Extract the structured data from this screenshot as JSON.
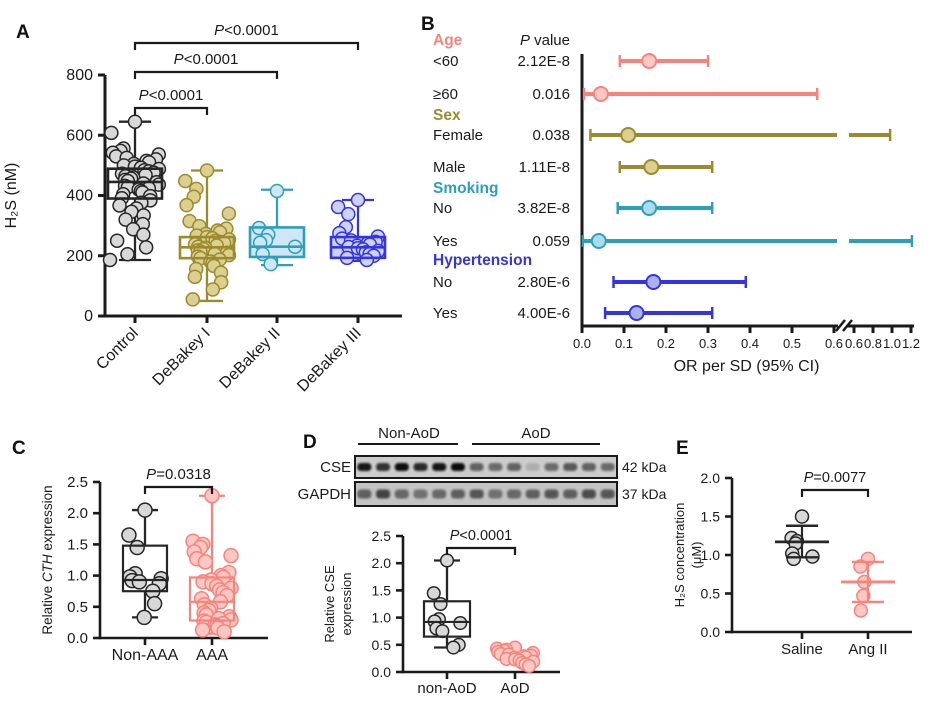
{
  "figure": {
    "panel_labels": {
      "A": "A",
      "B": "B",
      "C": "C",
      "D": "D",
      "E": "E"
    },
    "colors": {
      "black": "#262626",
      "salmon": "#f8837b",
      "olive": "#9c8a2e",
      "teal": "#2d9fba",
      "blue": "#3434e3"
    }
  },
  "chart_data": [
    {
      "id": "A",
      "type": "box-scatter",
      "ylabel": "H₂S (nM)",
      "ylim": [
        0,
        800
      ],
      "yticks": [
        0,
        200,
        400,
        600,
        800
      ],
      "tick_decimals": 0,
      "categories": [
        "Control",
        "DeBakey I",
        "DeBakey II",
        "DeBakey III"
      ],
      "groups": [
        {
          "name": "Control",
          "color": "#262626",
          "point_fill": "#d8d8d8",
          "box": {
            "lo": 186,
            "q1": 390,
            "median": 445,
            "q3": 489,
            "hi": 645
          },
          "points": [
            645,
            608,
            556,
            548,
            542,
            536,
            530,
            525,
            520,
            515,
            510,
            505,
            500,
            496,
            492,
            488,
            484,
            480,
            476,
            472,
            468,
            464,
            460,
            456,
            452,
            448,
            444,
            440,
            436,
            432,
            428,
            424,
            420,
            415,
            410,
            404,
            398,
            391,
            384,
            376,
            367,
            357,
            346,
            334,
            320,
            305,
            288,
            270,
            250,
            228,
            205,
            186
          ]
        },
        {
          "name": "DeBakey I",
          "color": "#9c8a2e",
          "point_fill": "#dccf8f",
          "box": {
            "lo": 50,
            "q1": 192,
            "median": 228,
            "q3": 262,
            "hi": 483
          },
          "points": [
            483,
            448,
            422,
            396,
            368,
            340,
            315,
            298,
            290,
            284,
            278,
            272,
            267,
            262,
            258,
            254,
            250,
            246,
            242,
            238,
            234,
            230,
            226,
            222,
            218,
            214,
            210,
            206,
            202,
            197,
            192,
            187,
            181,
            174,
            166,
            156,
            144,
            130,
            112,
            88,
            55
          ]
        },
        {
          "name": "DeBakey II",
          "color": "#2d9fba",
          "point_fill": "#cfe6f4",
          "box_fill": "#cfe6f4",
          "box": {
            "lo": 169,
            "q1": 196,
            "median": 230,
            "q3": 294,
            "hi": 419
          },
          "points": [
            415,
            292,
            270,
            252,
            243,
            230,
            206,
            172
          ]
        },
        {
          "name": "DeBakey III",
          "color": "#3434e3",
          "point_fill": "#ccd2f8",
          "box_fill": "#ccd2f8",
          "box": {
            "lo": 183,
            "q1": 193,
            "median": 228,
            "q3": 262,
            "hi": 385
          },
          "points": [
            385,
            362,
            338,
            295,
            275,
            264,
            257,
            251,
            246,
            241,
            237,
            233,
            229,
            225,
            221,
            216,
            211,
            206,
            200,
            193,
            186
          ]
        }
      ],
      "significance": [
        {
          "from": 0,
          "to": 1,
          "label": "P<0.0001"
        },
        {
          "from": 0,
          "to": 2,
          "label": "P<0.0001"
        },
        {
          "from": 0,
          "to": 3,
          "label": "P<0.0001"
        }
      ]
    },
    {
      "id": "B",
      "type": "forest",
      "xlabel": "OR per SD (95% CI)",
      "p_header": "P value",
      "axis": {
        "linear_max": 0.6,
        "break_max": 1.2,
        "ticks_main": [
          0.0,
          0.1,
          0.2,
          0.3,
          0.4,
          0.5,
          0.6
        ],
        "ticks_after_break": [
          0.6,
          0.8,
          1.0,
          1.2
        ]
      },
      "rows": [
        {
          "header": "Age",
          "color": "#f8837b"
        },
        {
          "label": "<60",
          "p": "2.12E-8",
          "or": 0.16,
          "lo": 0.09,
          "hi": 0.3,
          "color": "#f8837b",
          "point_fill": "#fbc7c3"
        },
        {
          "label": "≥60",
          "p": "0.016",
          "or": 0.045,
          "lo": 0.005,
          "hi": 0.56,
          "color": "#f8837b",
          "point_fill": "#fbc7c3"
        },
        {
          "header": "Sex",
          "color": "#9c8a2e"
        },
        {
          "label": "Female",
          "p": "0.038",
          "or": 0.11,
          "lo": 0.02,
          "hi": 0.98,
          "color": "#9c8a2e",
          "point_fill": "#dccf8f"
        },
        {
          "label": "Male",
          "p": "1.11E-8",
          "or": 0.165,
          "lo": 0.09,
          "hi": 0.31,
          "color": "#9c8a2e",
          "point_fill": "#dccf8f"
        },
        {
          "header": "Smoking",
          "color": "#2d9fba"
        },
        {
          "label": "No",
          "p": "3.82E-8",
          "or": 0.16,
          "lo": 0.085,
          "hi": 0.31,
          "color": "#2d9fba",
          "point_fill": "#aadcec"
        },
        {
          "label": "Yes",
          "p": "0.059",
          "or": 0.04,
          "lo": 0.002,
          "hi": 1.21,
          "color": "#2d9fba",
          "point_fill": "#aadcec"
        },
        {
          "header": "Hypertension",
          "color": "#3434e3"
        },
        {
          "label": "No",
          "p": "2.80E-6",
          "or": 0.17,
          "lo": 0.075,
          "hi": 0.39,
          "color": "#3434e3",
          "point_fill": "#aab2f0"
        },
        {
          "label": "Yes",
          "p": "4.00E-6",
          "or": 0.13,
          "lo": 0.055,
          "hi": 0.31,
          "color": "#3434e3",
          "point_fill": "#aab2f0"
        }
      ]
    },
    {
      "id": "C",
      "type": "box-scatter",
      "ylabel_parts": [
        {
          "t": "Relative ",
          "i": false
        },
        {
          "t": "CTH",
          "i": true
        },
        {
          "t": " expression",
          "i": false
        }
      ],
      "ylim": [
        0,
        2.5
      ],
      "yticks": [
        0,
        0.5,
        1,
        1.5,
        2,
        2.5
      ],
      "tick_decimals": 1,
      "categories": [
        "Non-AAA",
        "AAA"
      ],
      "groups": [
        {
          "name": "Non-AAA",
          "color": "#262626",
          "point_fill": "#d8d8d8",
          "box": {
            "lo": 0.33,
            "q1": 0.75,
            "median": 0.93,
            "q3": 1.48,
            "hi": 2.05
          },
          "points": [
            2.05,
            1.65,
            1.45,
            1.03,
            0.98,
            0.95,
            0.92,
            0.9,
            0.87,
            0.75,
            0.55,
            0.33
          ]
        },
        {
          "name": "AAA",
          "color": "#f8837b",
          "point_fill": "#fbc7c3",
          "box": {
            "lo": 0.07,
            "q1": 0.28,
            "median": 0.58,
            "q3": 0.97,
            "hi": 2.28
          },
          "points": [
            2.28,
            1.55,
            1.5,
            1.45,
            1.38,
            1.32,
            1.27,
            1.22,
            1.05,
            1.0,
            0.97,
            0.93,
            0.9,
            0.87,
            0.83,
            0.8,
            0.77,
            0.73,
            0.68,
            0.63,
            0.58,
            0.53,
            0.48,
            0.44,
            0.4,
            0.37,
            0.34,
            0.31,
            0.29,
            0.27,
            0.25,
            0.23,
            0.21,
            0.19,
            0.16,
            0.13,
            0.1
          ]
        }
      ],
      "significance": [
        {
          "from": 0,
          "to": 1,
          "label": "P=0.0318"
        }
      ]
    },
    {
      "id": "D",
      "type": "blot-box",
      "blot": {
        "group_labels": [
          "Non-AoD",
          "AoD"
        ],
        "lanes_total": 14,
        "rows": [
          {
            "label": "CSE",
            "kda": "42 kDa",
            "bands": [
              0.95,
              0.8,
              1.0,
              0.85,
              0.95,
              1.0,
              0.55,
              0.5,
              0.55,
              0.15,
              0.5,
              0.6,
              0.55,
              0.5
            ]
          },
          {
            "label": "GAPDH",
            "kda": "37 kDa",
            "bands": [
              0.55,
              0.7,
              0.5,
              0.45,
              0.5,
              0.55,
              0.6,
              0.45,
              0.5,
              0.55,
              0.6,
              0.55,
              0.65,
              0.6
            ]
          }
        ]
      },
      "box": {
        "ylabel_lines": [
          "Relative CSE",
          "expression"
        ],
        "ylim": [
          0,
          2.5
        ],
        "yticks": [
          0,
          0.5,
          1,
          1.5,
          2,
          2.5
        ],
        "tick_decimals": 1,
        "categories": [
          "non-AoD",
          "AoD"
        ],
        "groups": [
          {
            "name": "non-AoD",
            "color": "#262626",
            "point_fill": "#d8d8d8",
            "box": {
              "lo": 0.45,
              "q1": 0.65,
              "median": 0.92,
              "q3": 1.3,
              "hi": 2.05
            },
            "points": [
              2.05,
              1.45,
              1.25,
              0.97,
              0.93,
              0.9,
              0.8,
              0.75,
              0.5,
              0.45
            ]
          },
          {
            "name": "AoD",
            "color": "#f8837b",
            "point_fill": "#fbc7c3",
            "points": [
              0.45,
              0.43,
              0.41,
              0.39,
              0.37,
              0.35,
              0.33,
              0.32,
              0.3,
              0.29,
              0.27,
              0.26,
              0.24,
              0.23,
              0.21,
              0.19,
              0.17,
              0.14,
              0.11
            ]
          }
        ],
        "significance": [
          {
            "from": 0,
            "to": 1,
            "label": "P<0.0001"
          }
        ]
      }
    },
    {
      "id": "E",
      "type": "box-scatter",
      "ylabel_lines": [
        "H₂S concentration",
        "(μM)"
      ],
      "ylim": [
        0,
        2
      ],
      "yticks": [
        0,
        0.5,
        1,
        1.5,
        2
      ],
      "tick_decimals": 1,
      "categories": [
        "Saline",
        "Ang II"
      ],
      "groups": [
        {
          "name": "Saline",
          "color": "#262626",
          "point_fill": "#d8d8d8",
          "mean": 1.17,
          "sd_lo": 0.97,
          "sd_hi": 1.38,
          "points": [
            1.5,
            1.22,
            1.18,
            1.15,
            1.02,
            0.98,
            0.95
          ]
        },
        {
          "name": "Ang II",
          "color": "#f8837b",
          "point_fill": "#fbc7c3",
          "mean": 0.65,
          "sd_lo": 0.39,
          "sd_hi": 0.91,
          "points": [
            0.95,
            0.85,
            0.65,
            0.47,
            0.28
          ]
        }
      ],
      "significance": [
        {
          "from": 0,
          "to": 1,
          "label": "P=0.0077"
        }
      ]
    }
  ]
}
